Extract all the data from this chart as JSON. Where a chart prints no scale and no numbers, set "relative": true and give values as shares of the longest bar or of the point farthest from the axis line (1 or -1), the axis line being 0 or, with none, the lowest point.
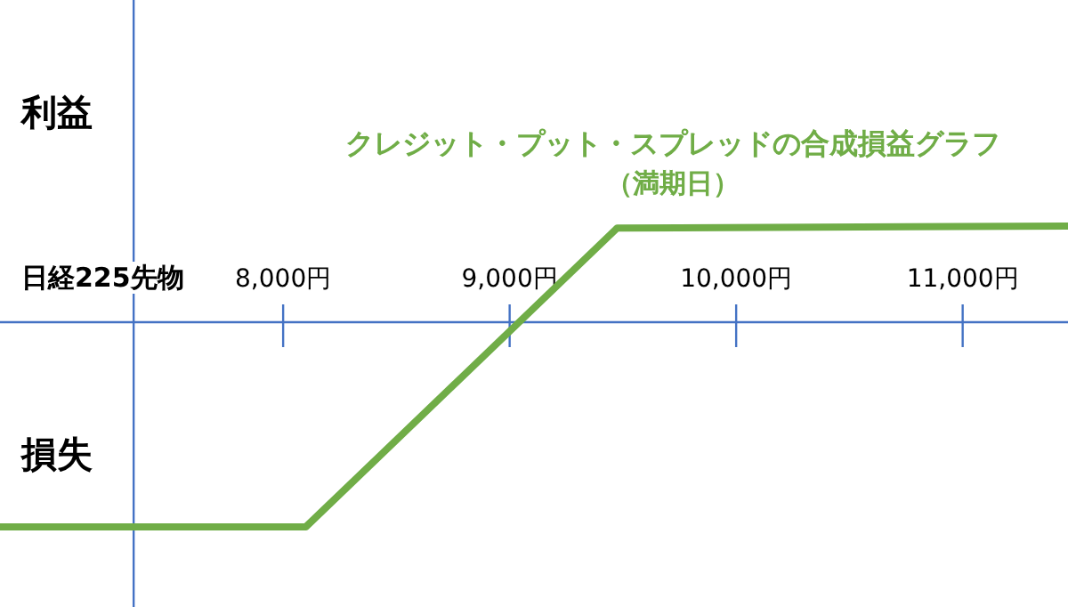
{
  "chart_data": {
    "type": "line",
    "relative": true,
    "title": "クレジット・プット・スプレッドの合成損益グラフ",
    "subtitle": "（満期日）",
    "xlabel": "日経225先物",
    "annotations": [
      "利益",
      "損失"
    ],
    "x": [
      6750,
      8100,
      9475,
      11465
    ],
    "series": [
      {
        "color": "#70ad47",
        "values": [
          -1,
          -1,
          0.46,
          0.47
        ]
      }
    ],
    "xlim": [
      6750,
      11465
    ],
    "xticks": [
      {
        "value": 8000,
        "label": "8,000円"
      },
      {
        "value": 9000,
        "label": "9,000円"
      },
      {
        "value": 10000,
        "label": "10,000円"
      },
      {
        "value": 11000,
        "label": "11,000円"
      }
    ],
    "ref_lines": [
      {
        "axis": "x",
        "value": 7340,
        "color": "#4472c4",
        "line_style": "solid"
      }
    ],
    "grid": false,
    "marker": "none",
    "line_style": "solid"
  }
}
